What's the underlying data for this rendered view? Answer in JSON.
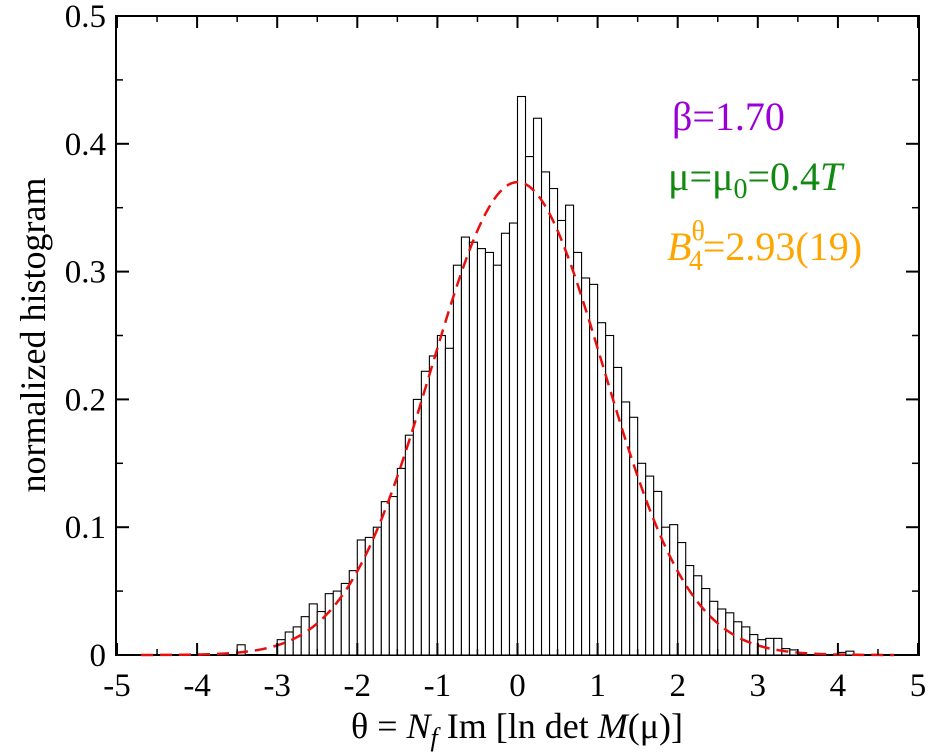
{
  "chart_data": {
    "type": "bar",
    "title": "",
    "xlabel": "θ = N_f Im [ln det M(μ)]",
    "xlabel_parts": {
      "theta": "θ",
      "eq": " = ",
      "N": "N",
      "f": "f",
      "im_ln_det": " Im [ln det ",
      "M": "M",
      "mu": "(μ)]"
    },
    "ylabel": "normalized histogram",
    "xlim": [
      -5,
      5
    ],
    "ylim": [
      0,
      0.5
    ],
    "xticks": [
      -5,
      -4,
      -3,
      -2,
      -1,
      0,
      1,
      2,
      3,
      4,
      5
    ],
    "xtick_labels": [
      "-5",
      "-4",
      "-3",
      "-2",
      "-1",
      "0",
      "1",
      "2",
      "3",
      "4",
      "5"
    ],
    "yticks": [
      0,
      0.1,
      0.2,
      0.3,
      0.4,
      0.5
    ],
    "ytick_labels": [
      "0",
      "0.1",
      "0.2",
      "0.3",
      "0.4",
      "0.5"
    ],
    "bin_width": 0.1,
    "histogram": {
      "name": "histogram",
      "bin_left_edges": [
        -3.5,
        -3.0,
        -2.9,
        -2.8,
        -2.7,
        -2.6,
        -2.5,
        -2.4,
        -2.3,
        -2.2,
        -2.1,
        -2.0,
        -1.9,
        -1.8,
        -1.7,
        -1.6,
        -1.5,
        -1.4,
        -1.3,
        -1.2,
        -1.1,
        -1.0,
        -0.9,
        -0.8,
        -0.7,
        -0.6,
        -0.5,
        -0.4,
        -0.3,
        -0.2,
        -0.1,
        0.0,
        0.1,
        0.2,
        0.3,
        0.4,
        0.5,
        0.6,
        0.7,
        0.8,
        0.9,
        1.0,
        1.1,
        1.2,
        1.3,
        1.4,
        1.5,
        1.6,
        1.7,
        1.8,
        1.9,
        2.0,
        2.1,
        2.2,
        2.3,
        2.4,
        2.5,
        2.6,
        2.7,
        2.8,
        2.9,
        3.0,
        3.1,
        3.2,
        3.3,
        3.4,
        4.0,
        4.1
      ],
      "values": [
        0.008,
        0.012,
        0.018,
        0.022,
        0.03,
        0.04,
        0.034,
        0.048,
        0.05,
        0.056,
        0.066,
        0.09,
        0.092,
        0.1,
        0.12,
        0.124,
        0.146,
        0.172,
        0.2,
        0.222,
        0.234,
        0.25,
        0.24,
        0.305,
        0.327,
        0.323,
        0.318,
        0.315,
        0.305,
        0.33,
        0.338,
        0.437,
        0.39,
        0.42,
        0.378,
        0.365,
        0.34,
        0.352,
        0.315,
        0.295,
        0.29,
        0.26,
        0.25,
        0.225,
        0.198,
        0.186,
        0.15,
        0.14,
        0.128,
        0.1,
        0.102,
        0.088,
        0.07,
        0.062,
        0.052,
        0.042,
        0.036,
        0.033,
        0.026,
        0.022,
        0.016,
        0.012,
        0.013,
        0.013,
        0.005,
        0.004,
        0.002,
        0.003
      ]
    },
    "fit_curve": {
      "name": "Gaussian fit",
      "style": "dashed",
      "color": "#e8100f",
      "mean": 0.0,
      "peak": 0.37,
      "sigma": 1.075
    },
    "annotations": [
      {
        "id": "beta",
        "text": "β=1.70",
        "color": "#9a00d6"
      },
      {
        "id": "mu",
        "text_mu": "μ=μ",
        "text_sub": "0",
        "text_val": "=0.4",
        "text_T": "T",
        "color": "#128a11"
      },
      {
        "id": "b4",
        "text_B": "B",
        "text_sup": "θ",
        "text_sub": "4",
        "text_val": "=2.93(19)",
        "color": "#ffa500"
      }
    ]
  }
}
